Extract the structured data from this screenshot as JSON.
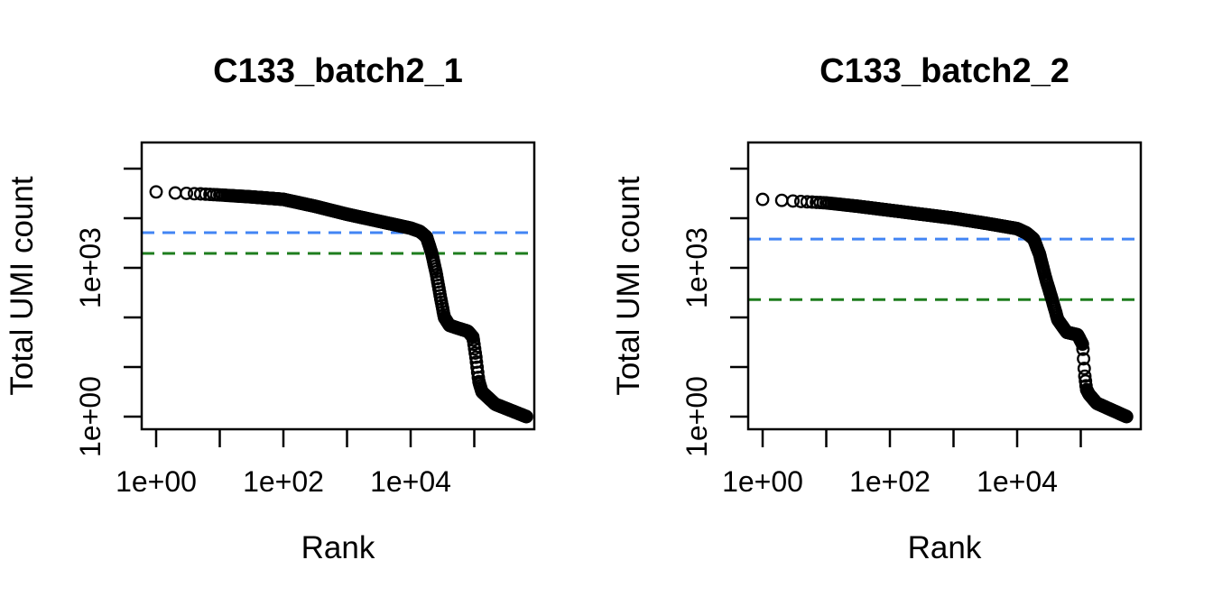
{
  "figure": {
    "background": "#ffffff",
    "description": "Two barcode-rank (knee) plots of total UMI count versus barcode rank on log-log axes, with dashed knee (blue) and inflection (green) threshold lines"
  },
  "chart_data": [
    {
      "type": "scatter",
      "title": "C133_batch2_1",
      "xlabel": "Rank",
      "ylabel": "Total UMI count",
      "x_scale": "log10",
      "y_scale": "log10",
      "x_range_log10": [
        0,
        5.82
      ],
      "y_range_log10": [
        0,
        4.53
      ],
      "x_tick_decades": [
        0,
        1,
        2,
        3,
        4,
        5
      ],
      "y_tick_decades": [
        0,
        1,
        2,
        3,
        4,
        5
      ],
      "x_tick_labels": [
        {
          "decade": 0,
          "label": "1e+00"
        },
        {
          "decade": 2,
          "label": "1e+02"
        },
        {
          "decade": 4,
          "label": "1e+04"
        }
      ],
      "y_tick_labels": [
        {
          "decade": 0,
          "label": "1e+00"
        },
        {
          "decade": 3,
          "label": "1e+03"
        }
      ],
      "marker": {
        "shape": "open-circle",
        "color": "#000000"
      },
      "first_point_umi": 34000,
      "max_rank": 660000,
      "thresholds": [
        {
          "name": "knee",
          "color": "#4285f4",
          "style": "dashed",
          "umi_value": 5100,
          "log10_value": 3.71
        },
        {
          "name": "inflection",
          "color": "#1e7d1e",
          "style": "dashed",
          "umi_value": 1950,
          "log10_value": 3.29
        }
      ],
      "curve_log10_rank_umi": [
        [
          0,
          4.53
        ],
        [
          0.3,
          4.51
        ],
        [
          0.7,
          4.49
        ],
        [
          1.0,
          4.47
        ],
        [
          1.5,
          4.43
        ],
        [
          2.0,
          4.38
        ],
        [
          2.5,
          4.24
        ],
        [
          3.0,
          4.08
        ],
        [
          3.5,
          3.94
        ],
        [
          4.0,
          3.8
        ],
        [
          4.15,
          3.73
        ],
        [
          4.25,
          3.62
        ],
        [
          4.33,
          3.3
        ],
        [
          4.4,
          2.9
        ],
        [
          4.47,
          2.4
        ],
        [
          4.53,
          2.0
        ],
        [
          4.61,
          1.84
        ],
        [
          4.75,
          1.78
        ],
        [
          4.9,
          1.72
        ],
        [
          4.98,
          1.6
        ],
        [
          5.03,
          1.15
        ],
        [
          5.07,
          0.72
        ],
        [
          5.12,
          0.5
        ],
        [
          5.33,
          0.25
        ],
        [
          5.82,
          0.0
        ]
      ]
    },
    {
      "type": "scatter",
      "title": "C133_batch2_2",
      "xlabel": "Rank",
      "ylabel": "Total UMI count",
      "x_scale": "log10",
      "y_scale": "log10",
      "x_range_log10": [
        0,
        5.72
      ],
      "y_range_log10": [
        0,
        4.38
      ],
      "x_tick_decades": [
        0,
        1,
        2,
        3,
        4,
        5
      ],
      "y_tick_decades": [
        0,
        1,
        2,
        3,
        4,
        5
      ],
      "x_tick_labels": [
        {
          "decade": 0,
          "label": "1e+00"
        },
        {
          "decade": 2,
          "label": "1e+02"
        },
        {
          "decade": 4,
          "label": "1e+04"
        }
      ],
      "y_tick_labels": [
        {
          "decade": 0,
          "label": "1e+00"
        },
        {
          "decade": 3,
          "label": "1e+03"
        }
      ],
      "marker": {
        "shape": "open-circle",
        "color": "#000000"
      },
      "first_point_umi": 24000,
      "max_rank": 525000,
      "thresholds": [
        {
          "name": "knee",
          "color": "#4285f4",
          "style": "dashed",
          "umi_value": 3800,
          "log10_value": 3.58
        },
        {
          "name": "inflection",
          "color": "#1e7d1e",
          "style": "dashed",
          "umi_value": 230,
          "log10_value": 2.36
        }
      ],
      "curve_log10_rank_umi": [
        [
          0,
          4.38
        ],
        [
          0.3,
          4.36
        ],
        [
          0.7,
          4.33
        ],
        [
          1.0,
          4.31
        ],
        [
          1.5,
          4.24
        ],
        [
          2.0,
          4.16
        ],
        [
          2.5,
          4.08
        ],
        [
          3.0,
          4.0
        ],
        [
          3.5,
          3.9
        ],
        [
          4.0,
          3.79
        ],
        [
          4.15,
          3.7
        ],
        [
          4.26,
          3.58
        ],
        [
          4.35,
          3.28
        ],
        [
          4.45,
          2.78
        ],
        [
          4.54,
          2.4
        ],
        [
          4.64,
          1.95
        ],
        [
          4.78,
          1.7
        ],
        [
          4.95,
          1.65
        ],
        [
          5.03,
          1.45
        ],
        [
          5.06,
          0.85
        ],
        [
          5.09,
          0.55
        ],
        [
          5.13,
          0.45
        ],
        [
          5.25,
          0.27
        ],
        [
          5.72,
          0.0
        ]
      ]
    }
  ]
}
